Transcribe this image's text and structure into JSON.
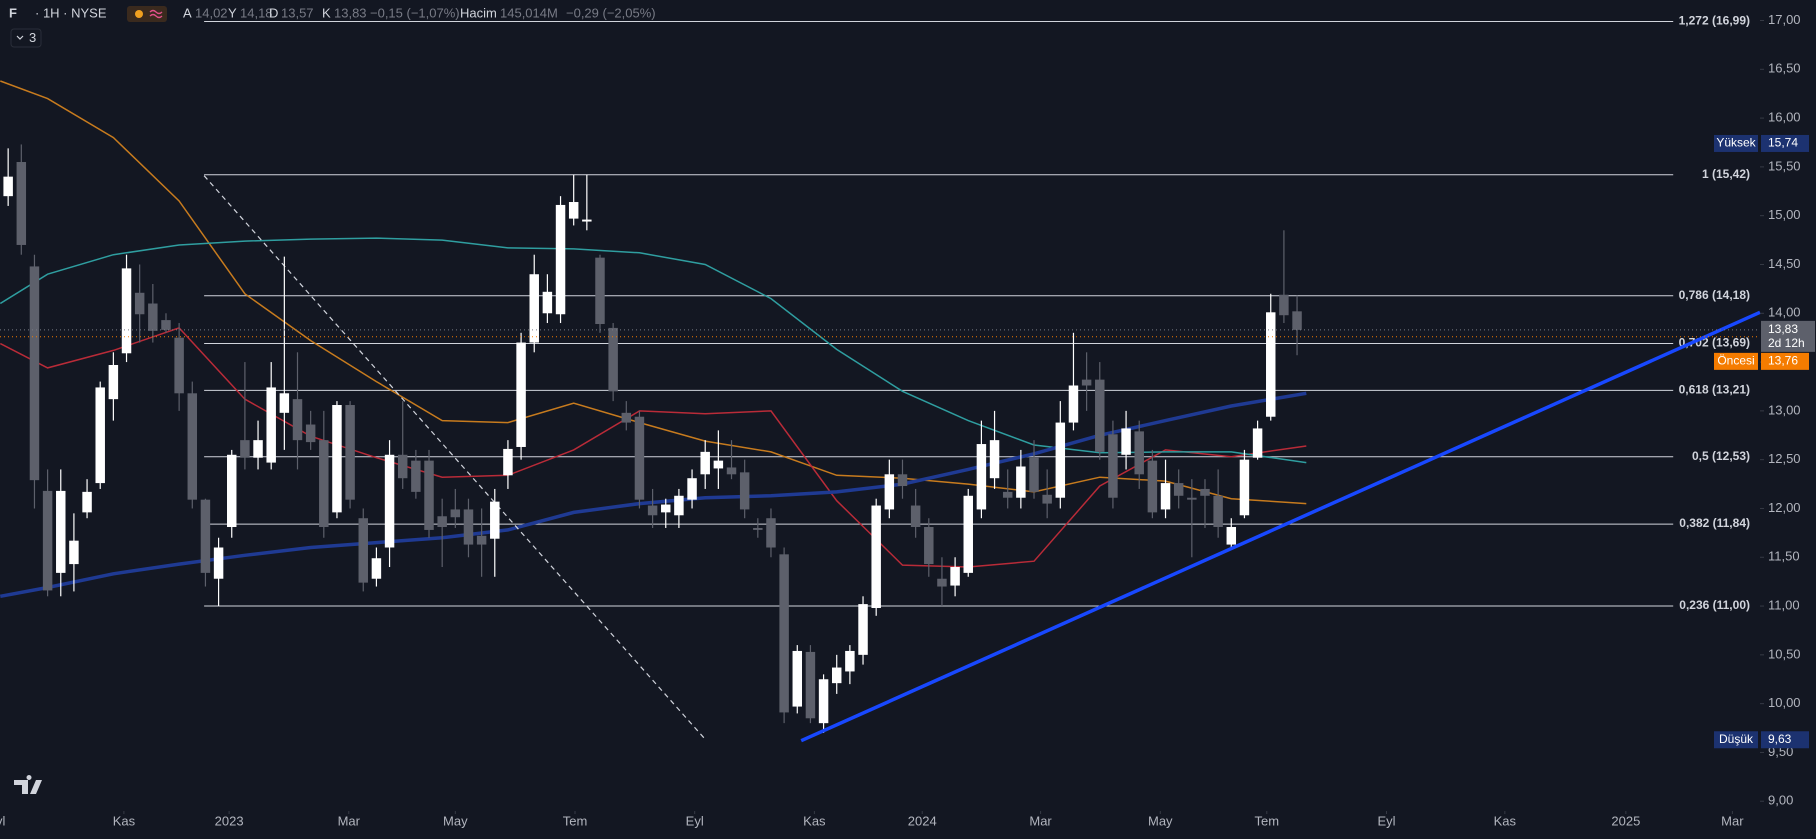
{
  "header": {
    "symbol": "F",
    "details": "· 1H · NYSE",
    "ohlc": [
      {
        "key": "A",
        "value": "14,02"
      },
      {
        "key": "Y",
        "value": "14,18"
      },
      {
        "key": "D",
        "value": "13,57"
      },
      {
        "key": "K",
        "value": "13,83"
      }
    ],
    "change": "−0,15 (−1,07%)",
    "volume_label": "Hacim",
    "volume": "145,014M",
    "volume_change": "−0,29 (−2,05%)",
    "indicator_count": "3"
  },
  "chart_data": {
    "type": "candlestick",
    "up_color": "#ffffff",
    "down_color": "#5d606b",
    "ohlc": [
      [
        15.2,
        15.69,
        15.1,
        15.4
      ],
      [
        15.55,
        15.73,
        14.6,
        14.7
      ],
      [
        14.48,
        14.6,
        12.0,
        12.29
      ],
      [
        12.18,
        12.4,
        11.1,
        11.16
      ],
      [
        11.34,
        12.4,
        11.1,
        12.18
      ],
      [
        11.43,
        11.95,
        11.15,
        11.67
      ],
      [
        11.96,
        12.3,
        11.9,
        12.17
      ],
      [
        12.26,
        13.3,
        12.2,
        13.24
      ],
      [
        13.12,
        13.6,
        12.9,
        13.47
      ],
      [
        13.59,
        14.6,
        13.5,
        14.46
      ],
      [
        14.21,
        14.5,
        13.7,
        13.99
      ],
      [
        14.1,
        14.3,
        13.7,
        13.82
      ],
      [
        13.93,
        14.0,
        13.8,
        13.83
      ],
      [
        13.75,
        13.9,
        13.0,
        13.18
      ],
      [
        13.18,
        13.3,
        12.0,
        12.09
      ],
      [
        12.09,
        12.1,
        11.2,
        11.34
      ],
      [
        11.28,
        11.7,
        11.0,
        11.6
      ],
      [
        11.81,
        12.6,
        11.7,
        12.55
      ],
      [
        12.7,
        13.5,
        12.4,
        12.52
      ],
      [
        12.52,
        12.9,
        12.4,
        12.7
      ],
      [
        12.47,
        13.5,
        12.4,
        13.24
      ],
      [
        12.98,
        14.58,
        12.6,
        13.18
      ],
      [
        13.12,
        13.6,
        12.4,
        12.7
      ],
      [
        12.86,
        13.0,
        12.6,
        12.68
      ],
      [
        12.7,
        13.0,
        11.7,
        11.81
      ],
      [
        11.96,
        13.1,
        11.9,
        13.06
      ],
      [
        13.06,
        13.1,
        12.0,
        12.09
      ],
      [
        11.9,
        12.0,
        11.15,
        11.24
      ],
      [
        11.28,
        11.6,
        11.2,
        11.49
      ],
      [
        11.6,
        12.7,
        11.4,
        12.55
      ],
      [
        12.55,
        13.1,
        12.2,
        12.31
      ],
      [
        12.49,
        12.6,
        12.1,
        12.17
      ],
      [
        12.49,
        12.6,
        11.7,
        11.78
      ],
      [
        11.92,
        12.1,
        11.4,
        11.81
      ],
      [
        11.99,
        12.2,
        11.8,
        11.91
      ],
      [
        11.99,
        12.1,
        11.5,
        11.63
      ],
      [
        11.72,
        12.0,
        11.3,
        11.63
      ],
      [
        11.69,
        12.2,
        11.3,
        12.07
      ],
      [
        12.34,
        12.7,
        12.2,
        12.61
      ],
      [
        12.63,
        13.8,
        12.5,
        13.7
      ],
      [
        13.7,
        14.6,
        13.6,
        14.4
      ],
      [
        14.0,
        14.4,
        13.9,
        14.22
      ],
      [
        13.99,
        15.2,
        13.9,
        15.11
      ],
      [
        14.97,
        15.42,
        14.9,
        15.14
      ],
      [
        14.94,
        15.42,
        14.85,
        14.96
      ],
      [
        14.57,
        14.6,
        13.8,
        13.89
      ],
      [
        13.85,
        13.9,
        13.1,
        13.2
      ],
      [
        12.98,
        13.1,
        12.8,
        12.88
      ],
      [
        12.94,
        13.0,
        12.0,
        12.09
      ],
      [
        12.03,
        12.2,
        11.8,
        11.93
      ],
      [
        11.96,
        12.1,
        11.8,
        12.04
      ],
      [
        11.93,
        12.2,
        11.8,
        12.13
      ],
      [
        12.09,
        12.4,
        12.0,
        12.31
      ],
      [
        12.35,
        12.7,
        12.2,
        12.58
      ],
      [
        12.41,
        12.8,
        12.2,
        12.49
      ],
      [
        12.42,
        12.7,
        12.3,
        12.35
      ],
      [
        12.37,
        12.5,
        11.9,
        11.99
      ],
      [
        11.8,
        11.9,
        11.7,
        11.78
      ],
      [
        11.9,
        12.0,
        11.5,
        11.6
      ],
      [
        11.53,
        11.6,
        9.8,
        9.91
      ],
      [
        9.97,
        10.6,
        9.9,
        10.54
      ],
      [
        10.53,
        10.6,
        9.8,
        9.85
      ],
      [
        9.8,
        10.3,
        9.7,
        10.25
      ],
      [
        10.21,
        10.5,
        10.1,
        10.37
      ],
      [
        10.33,
        10.6,
        10.2,
        10.54
      ],
      [
        10.5,
        11.1,
        10.4,
        11.02
      ],
      [
        10.98,
        12.1,
        10.9,
        12.03
      ],
      [
        11.99,
        12.5,
        11.9,
        12.35
      ],
      [
        12.35,
        12.5,
        12.1,
        12.23
      ],
      [
        12.03,
        12.2,
        11.7,
        11.81
      ],
      [
        11.81,
        11.9,
        11.3,
        11.43
      ],
      [
        11.28,
        11.5,
        11.0,
        11.2
      ],
      [
        11.21,
        11.5,
        11.1,
        11.4
      ],
      [
        11.34,
        12.2,
        11.3,
        12.13
      ],
      [
        11.99,
        12.9,
        11.9,
        12.66
      ],
      [
        12.31,
        13.0,
        12.2,
        12.7
      ],
      [
        12.17,
        12.4,
        12.0,
        12.11
      ],
      [
        12.11,
        12.6,
        12.0,
        12.43
      ],
      [
        12.52,
        12.7,
        12.1,
        12.17
      ],
      [
        12.14,
        12.4,
        11.9,
        12.05
      ],
      [
        12.11,
        13.1,
        12.0,
        12.88
      ],
      [
        12.88,
        13.8,
        12.8,
        13.26
      ],
      [
        13.32,
        13.6,
        13.0,
        13.26
      ],
      [
        13.32,
        13.5,
        12.5,
        12.58
      ],
      [
        12.76,
        12.9,
        12.0,
        12.11
      ],
      [
        12.55,
        13.0,
        12.4,
        12.82
      ],
      [
        12.79,
        12.9,
        12.2,
        12.35
      ],
      [
        12.49,
        12.6,
        11.9,
        11.96
      ],
      [
        11.99,
        12.5,
        11.9,
        12.26
      ],
      [
        12.26,
        12.4,
        12.0,
        12.13
      ],
      [
        12.11,
        12.3,
        11.5,
        12.09
      ],
      [
        12.2,
        12.3,
        11.8,
        12.13
      ],
      [
        12.13,
        12.4,
        11.7,
        11.81
      ],
      [
        11.63,
        11.9,
        11.6,
        11.81
      ],
      [
        11.93,
        12.6,
        11.9,
        12.5
      ],
      [
        12.52,
        12.9,
        12.5,
        12.82
      ],
      [
        12.94,
        14.2,
        12.9,
        14.01
      ],
      [
        14.19,
        14.85,
        13.9,
        13.98
      ],
      [
        14.02,
        14.18,
        13.57,
        13.83
      ]
    ],
    "overlays": [
      {
        "color": "#c77b1e",
        "width": 1.5,
        "x": [
          -0.6,
          3,
          8,
          13,
          18,
          23,
          28,
          33,
          38,
          43,
          48,
          53,
          58,
          63,
          68,
          73,
          78,
          83,
          88,
          93,
          98.7
        ],
        "values": [
          16.38,
          16.2,
          15.8,
          15.15,
          14.2,
          13.72,
          13.3,
          12.9,
          12.88,
          13.08,
          12.88,
          12.69,
          12.58,
          12.34,
          12.31,
          12.25,
          12.17,
          12.32,
          12.28,
          12.1,
          12.05
        ]
      },
      {
        "color": "#b92b38",
        "width": 1.5,
        "x": [
          -0.6,
          3,
          8,
          13,
          18,
          23,
          28,
          33,
          38,
          43,
          48,
          53,
          58,
          63,
          68,
          73,
          78,
          83,
          88,
          93,
          98.7
        ],
        "values": [
          13.69,
          13.44,
          13.62,
          13.85,
          13.12,
          12.74,
          12.52,
          12.32,
          12.34,
          12.6,
          13.0,
          12.97,
          13.0,
          12.08,
          11.42,
          11.4,
          11.46,
          12.23,
          12.6,
          12.53,
          12.64
        ]
      },
      {
        "color": "#2f9ea0",
        "width": 1.5,
        "x": [
          -0.6,
          3,
          8,
          13,
          18,
          23,
          28,
          33,
          38,
          43,
          48,
          53,
          58,
          63,
          68,
          73,
          78,
          83,
          88,
          93,
          98.7
        ],
        "values": [
          14.1,
          14.4,
          14.6,
          14.7,
          14.74,
          14.76,
          14.77,
          14.75,
          14.67,
          14.66,
          14.62,
          14.5,
          14.15,
          13.63,
          13.2,
          12.9,
          12.65,
          12.57,
          12.58,
          12.58,
          12.47
        ]
      },
      {
        "color": "#1f3a93",
        "width": 3.5,
        "x": [
          -0.6,
          3,
          8,
          13,
          18,
          23,
          28,
          33,
          38,
          43,
          48,
          53,
          58,
          63,
          68,
          73,
          78,
          83,
          88,
          93,
          98.7
        ],
        "values": [
          11.1,
          11.19,
          11.33,
          11.43,
          11.52,
          11.6,
          11.65,
          11.7,
          11.78,
          11.96,
          12.05,
          12.11,
          12.13,
          12.17,
          12.25,
          12.4,
          12.56,
          12.75,
          12.9,
          13.05,
          13.18
        ]
      }
    ],
    "trendlines": [
      {
        "x": [
          14.9,
          52.9
        ],
        "values": [
          15.41,
          9.65
        ],
        "color": "#d1d4dc",
        "dashed": true
      },
      {
        "x": [
          60.3,
          133.2
        ],
        "values": [
          9.62,
          14.01
        ],
        "color": "#1848ff",
        "dashed": false
      }
    ],
    "fib_x": [
      14.9,
      126.6
    ],
    "fib_levels": [
      {
        "value": 16.99,
        "label": "1,272 (16,99)"
      },
      {
        "value": 15.42,
        "label": "1 (15,42)"
      },
      {
        "value": 14.18,
        "label": "0,786 (14,18)"
      },
      {
        "value": 13.69,
        "label": "0,702 (13,69)"
      },
      {
        "value": 13.21,
        "label": "0,618 (13,21)"
      },
      {
        "value": 12.53,
        "label": "0,5 (12,53)"
      },
      {
        "value": 11.84,
        "label": "0,382 (11,84)"
      },
      {
        "value": 11.0,
        "label": "0,236 (11,00)"
      }
    ],
    "badges": [
      {
        "name": "Yüksek",
        "value": 15.74,
        "label": "15,74",
        "color": "#1c3270"
      },
      {
        "name": "Düşük",
        "value": 9.63,
        "label": "9,63",
        "color": "#1c3270"
      }
    ],
    "last_price": {
      "value": 13.83,
      "label": "13,83",
      "countdown": "2d 12h",
      "color": "#5d606b"
    },
    "premarket": {
      "name": "Öncesi",
      "value": 13.76,
      "label": "13,76",
      "color": "#f57c00"
    },
    "xlim": [
      -0.62,
      133.2
    ],
    "ylim": [
      8.9,
      17.21
    ],
    "xticks": [
      {
        "value": -0.9,
        "label": "Eyl"
      },
      {
        "value": 8.8,
        "label": "Kas"
      },
      {
        "value": 16.8,
        "label": "2023"
      },
      {
        "value": 25.9,
        "label": "Mar"
      },
      {
        "value": 34.0,
        "label": "May"
      },
      {
        "value": 43.1,
        "label": "Tem"
      },
      {
        "value": 52.2,
        "label": "Eyl"
      },
      {
        "value": 61.3,
        "label": "Kas"
      },
      {
        "value": 69.5,
        "label": "2024"
      },
      {
        "value": 78.5,
        "label": "Mar"
      },
      {
        "value": 87.6,
        "label": "May"
      },
      {
        "value": 95.7,
        "label": "Tem"
      },
      {
        "value": 104.8,
        "label": "Eyl"
      },
      {
        "value": 113.8,
        "label": "Kas"
      },
      {
        "value": 123.0,
        "label": "2025"
      },
      {
        "value": 131.1,
        "label": "Mar"
      }
    ],
    "yticks": [
      {
        "value": 9,
        "label": "9,00"
      },
      {
        "value": 9.5,
        "label": "9,50"
      },
      {
        "value": 10,
        "label": "10,00"
      },
      {
        "value": 10.5,
        "label": "10,50"
      },
      {
        "value": 11,
        "label": "11,00"
      },
      {
        "value": 11.5,
        "label": "11,50"
      },
      {
        "value": 12,
        "label": "12,00"
      },
      {
        "value": 12.5,
        "label": "12,50"
      },
      {
        "value": 13,
        "label": "13,00"
      },
      {
        "value": 13.5,
        "label": "13,50"
      },
      {
        "value": 14,
        "label": "14,00"
      },
      {
        "value": 14.5,
        "label": "14,50"
      },
      {
        "value": 15,
        "label": "15,00"
      },
      {
        "value": 15.5,
        "label": "15,50"
      },
      {
        "value": 16,
        "label": "16,00"
      },
      {
        "value": 16.5,
        "label": "16,50"
      },
      {
        "value": 17,
        "label": "17,00"
      }
    ]
  }
}
